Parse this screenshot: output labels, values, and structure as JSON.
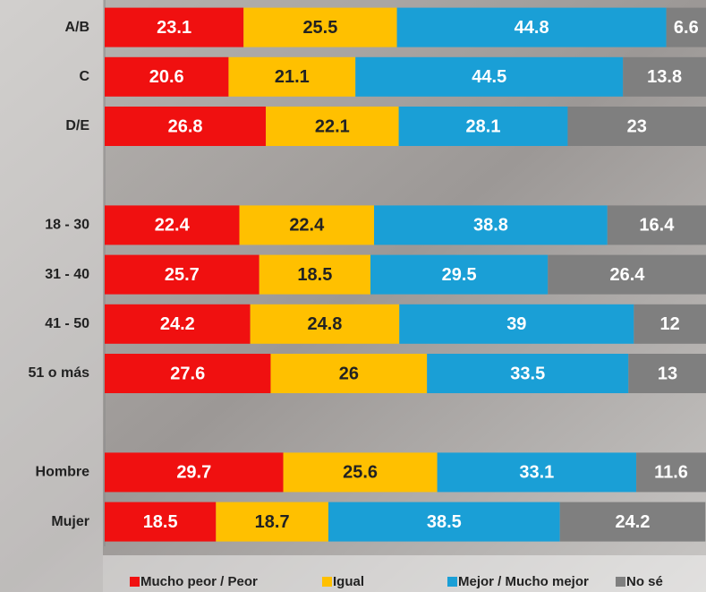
{
  "chart_data": {
    "type": "stacked-bar",
    "orientation": "horizontal",
    "categories": [
      "A/B",
      "C",
      "D/E",
      null,
      "18 - 30",
      "31 - 40",
      "41 - 50",
      "51 o más",
      null,
      "Hombre",
      "Mujer"
    ],
    "series": [
      {
        "name": "Mucho peor / Peor",
        "color": "#f01010",
        "values": [
          23.1,
          20.6,
          26.8,
          null,
          22.4,
          25.7,
          24.2,
          27.6,
          null,
          29.7,
          18.5
        ]
      },
      {
        "name": "Igual",
        "color": "#ffc000",
        "values": [
          25.5,
          21.1,
          22.1,
          null,
          22.4,
          18.5,
          24.8,
          26,
          null,
          25.6,
          18.7
        ]
      },
      {
        "name": "Mejor / Mucho mejor",
        "color": "#1a9fd6",
        "values": [
          44.8,
          44.5,
          28.1,
          null,
          38.8,
          29.5,
          39,
          33.5,
          null,
          33.1,
          38.5
        ]
      },
      {
        "name": "No sé",
        "color": "#7f7f7f",
        "values": [
          6.6,
          13.8,
          23,
          null,
          16.4,
          26.4,
          12,
          13,
          null,
          11.6,
          24.2
        ]
      }
    ],
    "xlim": [
      0,
      100
    ],
    "legend": "bottom"
  }
}
